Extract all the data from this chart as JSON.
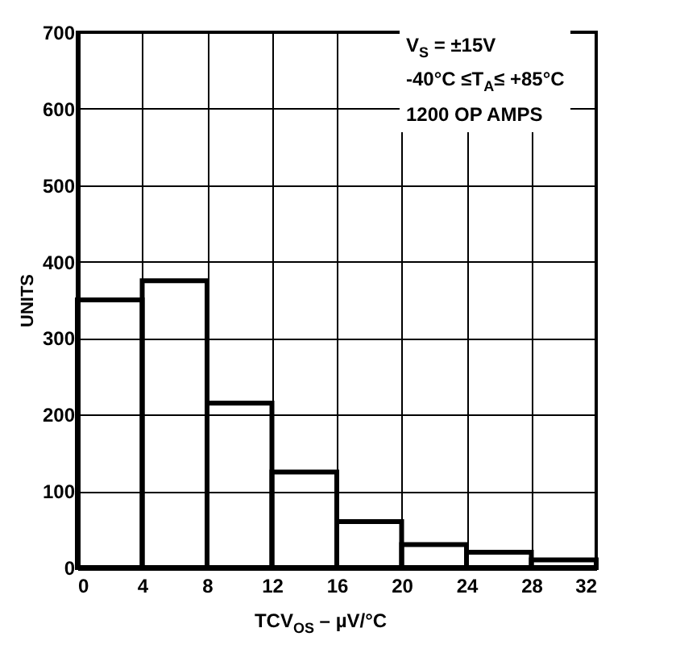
{
  "chart_data": {
    "type": "histogram",
    "xlabel": "TCV$_{OS}$ – µV/°C",
    "ylabel": "UNITS",
    "bins": [
      0,
      4,
      8,
      12,
      16,
      20,
      24,
      28,
      32
    ],
    "values": [
      350,
      375,
      215,
      125,
      60,
      30,
      20,
      10
    ],
    "color": "#000000",
    "xlim": [
      0,
      32
    ],
    "xticks": [
      0,
      4,
      8,
      12,
      16,
      20,
      24,
      28,
      32
    ],
    "ylim": [
      0,
      700
    ],
    "yticks": [
      0,
      100,
      200,
      300,
      400,
      500,
      600,
      700
    ],
    "grid": true,
    "annotations": [
      "V$_{S}$ = ±15V",
      "-40°C ≤T$_{A}$≤ +85°C",
      "1200  OP AMPS"
    ]
  }
}
